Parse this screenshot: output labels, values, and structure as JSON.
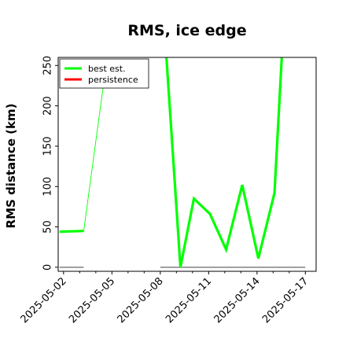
{
  "chart_data": {
    "type": "line",
    "title": "RMS, ice edge",
    "xlabel": "",
    "ylabel": "RMS distance (km)",
    "xlim": [
      "2025-05-01T16:00",
      "2025-05-17T16:00"
    ],
    "ylim": [
      -5,
      260
    ],
    "yticks": [
      0,
      50,
      100,
      150,
      200,
      250
    ],
    "ytick_labels": [
      "0",
      "50",
      "100",
      "150",
      "200",
      "250"
    ],
    "xticks": [
      "2025-05-02",
      "2025-05-03",
      "2025-05-04",
      "2025-05-05",
      "2025-05-06",
      "2025-05-07",
      "2025-05-08",
      "2025-05-09",
      "2025-05-10",
      "2025-05-11",
      "2025-05-12",
      "2025-05-13",
      "2025-05-14",
      "2025-05-15",
      "2025-05-16",
      "2025-05-17"
    ],
    "xtick_labels": [
      "2025-05-02",
      "2025-05-05",
      "2025-05-08",
      "2025-05-11",
      "2025-05-14",
      "2025-05-17"
    ],
    "xtick_labeled": [
      "2025-05-02",
      "2025-05-05",
      "2025-05-08",
      "2025-05-11",
      "2025-05-14",
      "2025-05-17"
    ],
    "grid": false,
    "legend_position": "top-left",
    "series": [
      {
        "name": "best est.",
        "color": "#00ff00",
        "segments": [
          {
            "x": [
              "2025-05-01T18:00",
              "2025-05-03T06:00"
            ],
            "y": [
              44,
              45
            ]
          },
          {
            "x": [
              "2025-05-08T09:00",
              "2025-05-09T06:00",
              "2025-05-10T02:00",
              "2025-05-11T02:00",
              "2025-05-12T02:00",
              "2025-05-13T02:00",
              "2025-05-14T02:00",
              "2025-05-15T02:00",
              "2025-05-15T13:00"
            ],
            "y": [
              262,
              0,
              85,
              66,
              22,
              102,
              11,
              92,
              262
            ]
          }
        ]
      },
      {
        "name": "persistence",
        "color": "#ff0000",
        "segments": []
      }
    ],
    "annotations": [
      {
        "kind": "thin-line",
        "color": "#00ff00",
        "x": [
          "2025-05-03T06:00",
          "2025-05-04T12:00"
        ],
        "y": [
          45,
          230
        ]
      },
      {
        "kind": "baseline",
        "color": "#808080",
        "x": [
          "2025-05-01T18:00",
          "2025-05-03T06:00"
        ],
        "y": [
          0,
          0
        ]
      },
      {
        "kind": "baseline",
        "color": "#808080",
        "x": [
          "2025-05-08T00:00",
          "2025-05-17T00:00"
        ],
        "y": [
          0,
          0
        ]
      }
    ]
  }
}
